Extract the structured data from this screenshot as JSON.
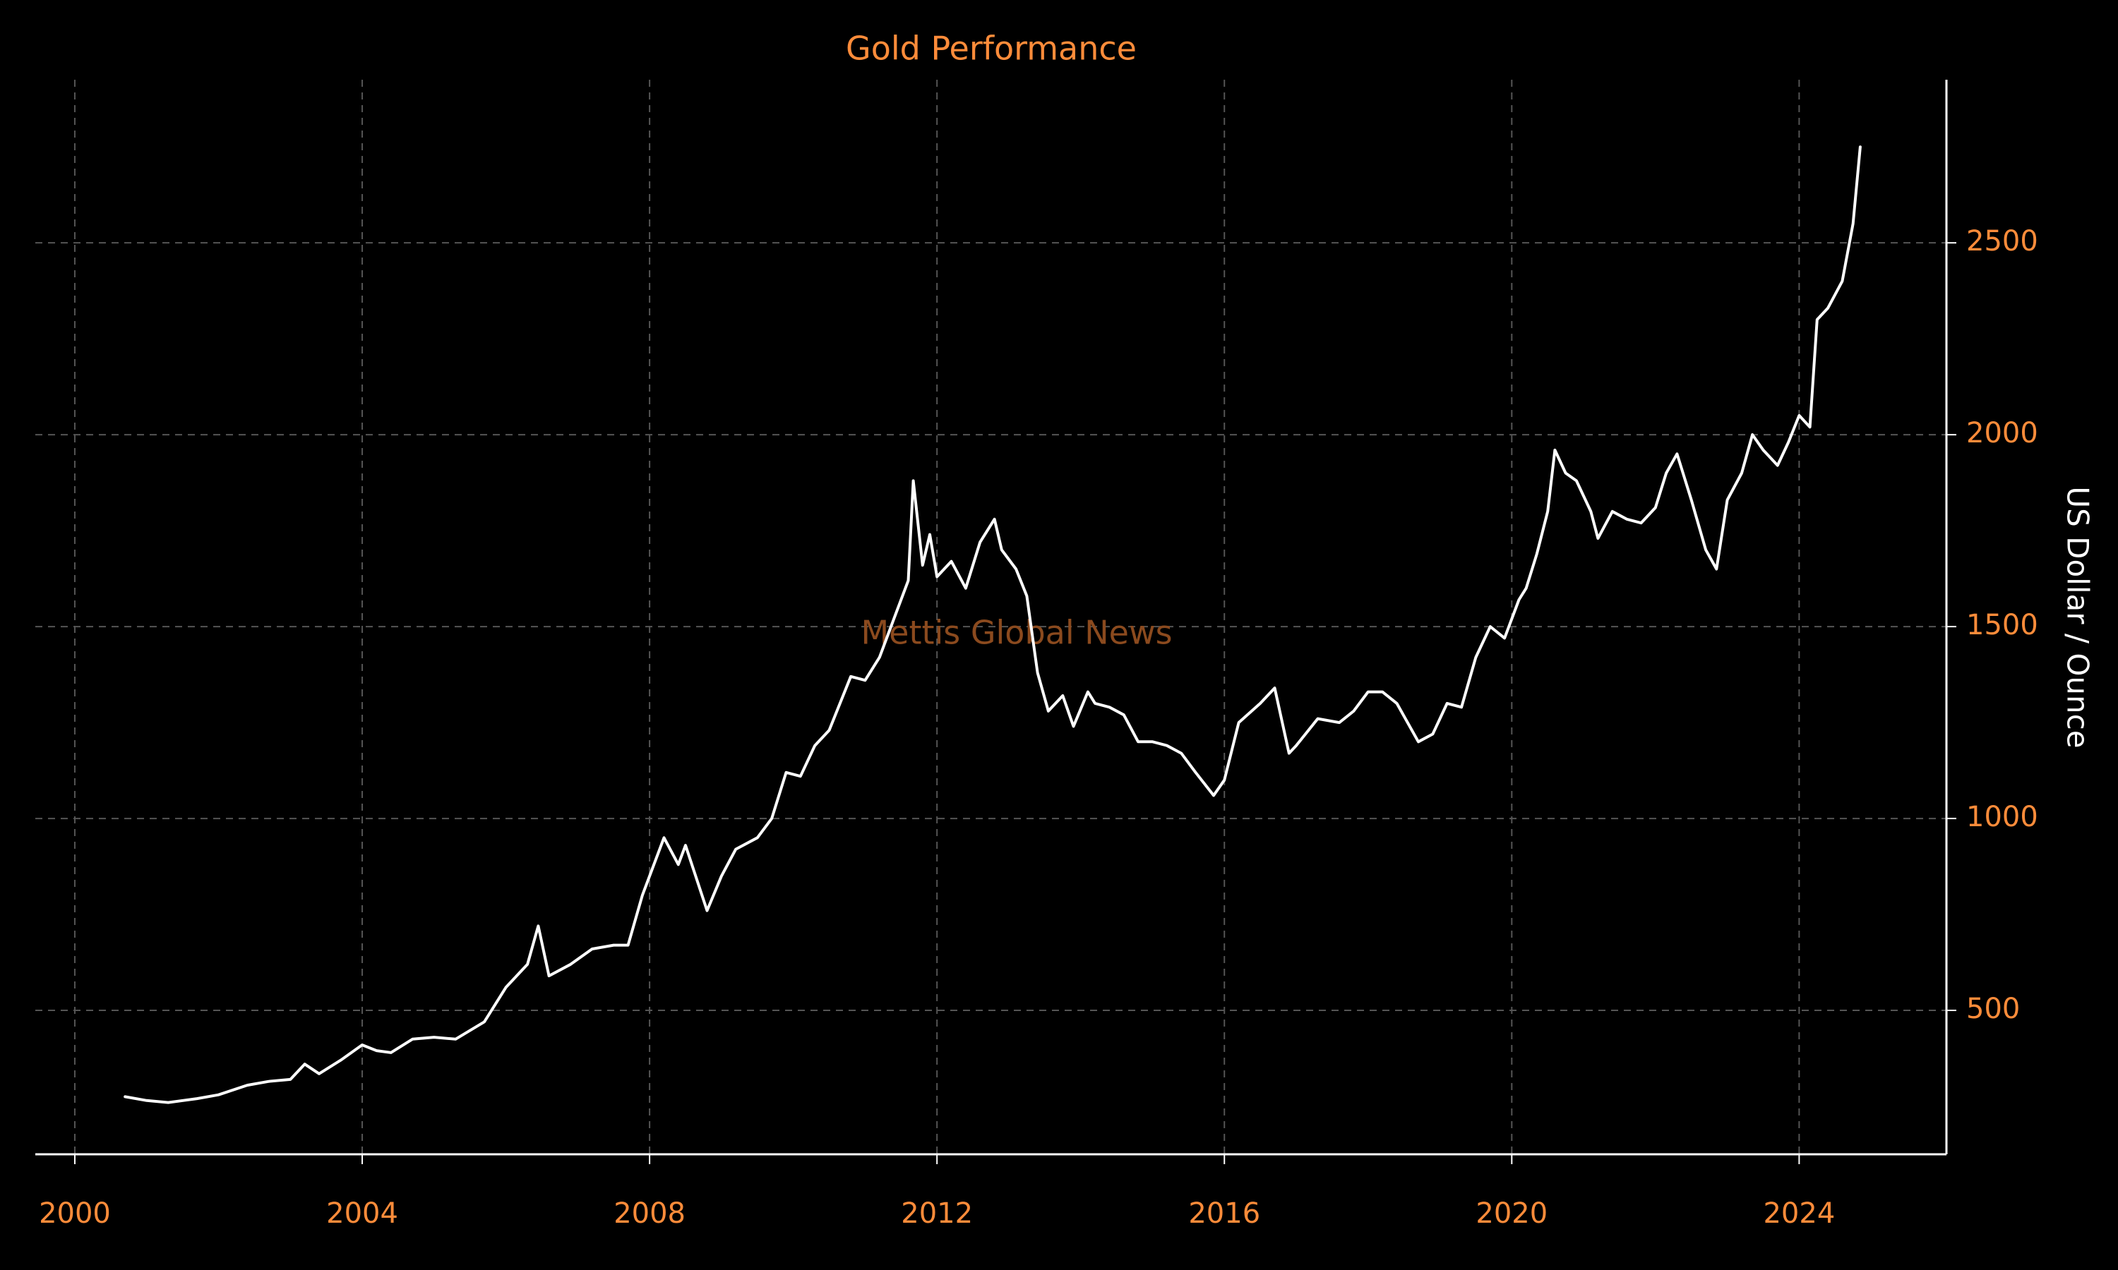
{
  "colors": {
    "background": "#000000",
    "accent": "#ff8c3a",
    "line": "#ffffff",
    "grid": "#555555",
    "watermark": "#8b4a1e"
  },
  "chart_data": {
    "type": "line",
    "title": "Gold Performance",
    "ylabel": "US Dollar / Ounce",
    "xlabel": "",
    "watermark": "Mettis Global News",
    "grid": true,
    "y_axis_position": "right",
    "xlim": [
      1999.45,
      2026.05
    ],
    "ylim": [
      125,
      2925
    ],
    "x_ticks": [
      2000,
      2004,
      2008,
      2012,
      2016,
      2020,
      2024
    ],
    "y_ticks": [
      500,
      1000,
      1500,
      2000,
      2500
    ],
    "series": [
      {
        "x": [
          2000.7,
          2001.0,
          2001.3,
          2001.7,
          2002.0,
          2002.4,
          2002.7,
          2003.0,
          2003.2,
          2003.4,
          2003.7,
          2004.0,
          2004.2,
          2004.4,
          2004.7,
          2005.0,
          2005.3,
          2005.7,
          2006.0,
          2006.3,
          2006.45,
          2006.6,
          2006.9,
          2007.2,
          2007.5,
          2007.7,
          2007.9,
          2008.2,
          2008.4,
          2008.5,
          2008.8,
          2009.0,
          2009.2,
          2009.5,
          2009.7,
          2009.9,
          2010.1,
          2010.3,
          2010.5,
          2010.8,
          2011.0,
          2011.2,
          2011.4,
          2011.6,
          2011.67,
          2011.8,
          2011.9,
          2012.0,
          2012.2,
          2012.4,
          2012.6,
          2012.8,
          2012.9,
          2013.1,
          2013.25,
          2013.4,
          2013.55,
          2013.75,
          2013.9,
          2014.1,
          2014.2,
          2014.4,
          2014.6,
          2014.8,
          2015.0,
          2015.2,
          2015.4,
          2015.6,
          2015.85,
          2016.0,
          2016.2,
          2016.5,
          2016.7,
          2016.9,
          2017.0,
          2017.3,
          2017.6,
          2017.8,
          2018.0,
          2018.2,
          2018.4,
          2018.7,
          2018.9,
          2019.1,
          2019.3,
          2019.5,
          2019.7,
          2019.9,
          2020.1,
          2020.2,
          2020.35,
          2020.5,
          2020.6,
          2020.75,
          2020.9,
          2021.1,
          2021.2,
          2021.4,
          2021.6,
          2021.8,
          2022.0,
          2022.15,
          2022.3,
          2022.5,
          2022.7,
          2022.85,
          2023.0,
          2023.2,
          2023.35,
          2023.5,
          2023.7,
          2023.85,
          2024.0,
          2024.15,
          2024.25,
          2024.4,
          2024.6,
          2024.75,
          2024.85
        ],
        "values": [
          275,
          265,
          260,
          270,
          280,
          305,
          315,
          320,
          360,
          335,
          370,
          410,
          395,
          390,
          425,
          430,
          425,
          470,
          560,
          620,
          720,
          590,
          620,
          660,
          670,
          670,
          800,
          950,
          880,
          930,
          760,
          850,
          920,
          950,
          1000,
          1120,
          1110,
          1190,
          1230,
          1370,
          1360,
          1420,
          1520,
          1620,
          1880,
          1660,
          1740,
          1630,
          1670,
          1600,
          1720,
          1780,
          1700,
          1650,
          1580,
          1380,
          1280,
          1320,
          1240,
          1330,
          1300,
          1290,
          1270,
          1200,
          1200,
          1190,
          1170,
          1120,
          1060,
          1100,
          1250,
          1300,
          1340,
          1170,
          1190,
          1260,
          1250,
          1280,
          1330,
          1330,
          1300,
          1200,
          1220,
          1300,
          1290,
          1420,
          1500,
          1470,
          1570,
          1600,
          1690,
          1800,
          1960,
          1900,
          1880,
          1800,
          1730,
          1800,
          1780,
          1770,
          1810,
          1900,
          1950,
          1830,
          1700,
          1650,
          1830,
          1900,
          2000,
          1960,
          1920,
          1980,
          2050,
          2020,
          2300,
          2330,
          2400,
          2550,
          2750
        ]
      }
    ]
  }
}
